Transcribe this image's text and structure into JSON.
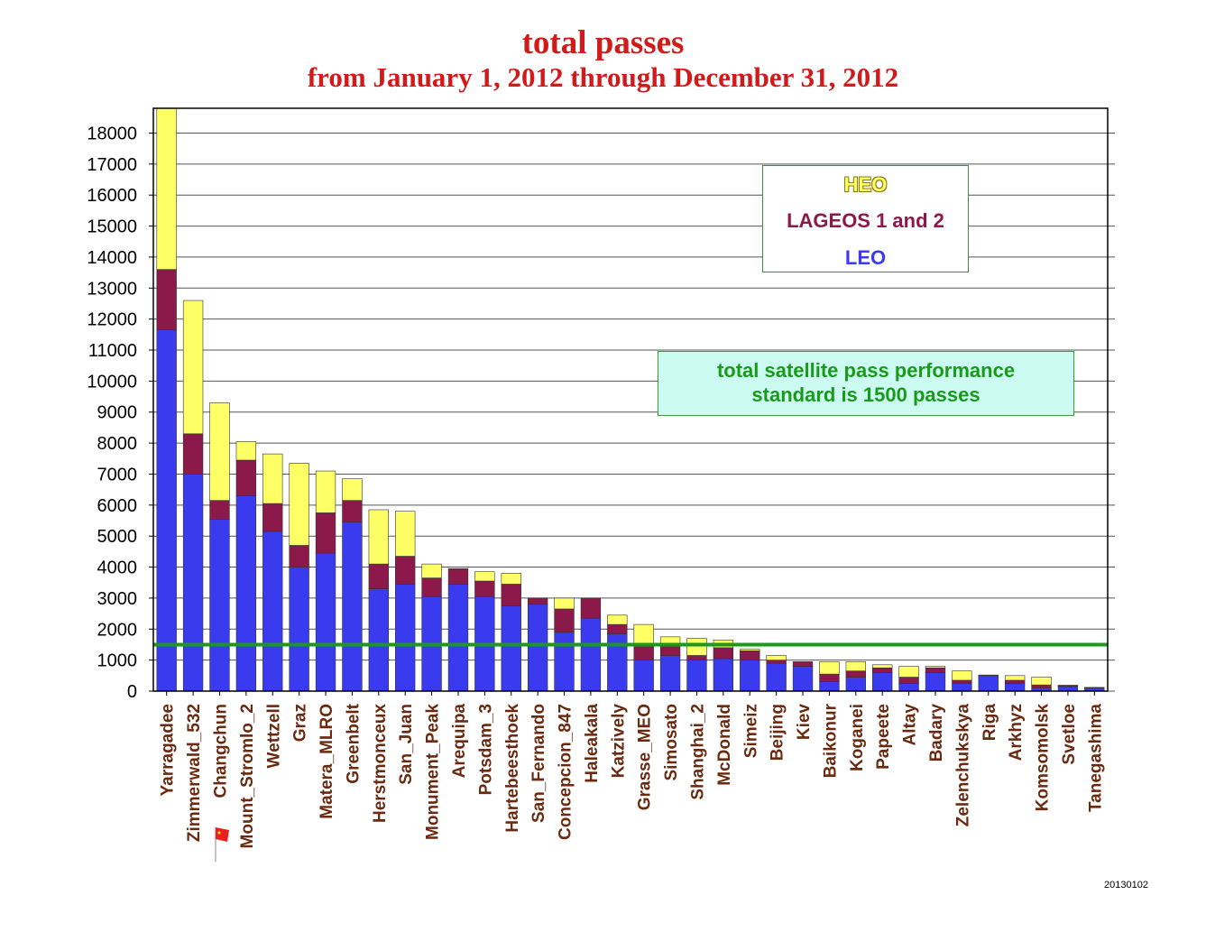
{
  "chart_data": {
    "type": "bar",
    "stacked": true,
    "title": "total passes",
    "subtitle": "from January 1, 2012 through December 31, 2012",
    "categories": [
      "Yarragadee",
      "Zimmerwald_532",
      "Changchun",
      "Mount_Stromlo_2",
      "Wettzell",
      "Graz",
      "Matera_MLRO",
      "Greenbelt",
      "Herstmonceux",
      "San_Juan",
      "Monument_Peak",
      "Arequipa",
      "Potsdam_3",
      "Hartebeesthoek",
      "San_Fernando",
      "Concepcion_847",
      "Haleakala",
      "Katzively",
      "Grasse_MEO",
      "Simosato",
      "Shanghai_2",
      "McDonald",
      "Simeiz",
      "Beijing",
      "Kiev",
      "Baikonur",
      "Koganei",
      "Papeete",
      "Altay",
      "Badary",
      "Zelenchukskya",
      "Riga",
      "Arkhyz",
      "Komsomolsk",
      "Svetloe",
      "Tanegashima"
    ],
    "series": [
      {
        "name": "LEO",
        "color": "#3a3aee",
        "values": [
          11650,
          7000,
          5550,
          6300,
          5150,
          4000,
          4450,
          5450,
          3300,
          3450,
          3050,
          3450,
          3050,
          2750,
          2800,
          1900,
          2350,
          1850,
          1000,
          1150,
          1000,
          1050,
          1000,
          900,
          800,
          300,
          450,
          600,
          250,
          600,
          250,
          500,
          250,
          100,
          150,
          100
        ]
      },
      {
        "name": "LAGEOS 1 and 2",
        "color": "#8b1a4a",
        "values": [
          1950,
          1300,
          600,
          1150,
          900,
          700,
          1300,
          700,
          800,
          900,
          600,
          500,
          500,
          700,
          200,
          750,
          650,
          300,
          450,
          350,
          150,
          350,
          300,
          100,
          150,
          250,
          200,
          150,
          200,
          150,
          100,
          20,
          100,
          100,
          30,
          20
        ]
      },
      {
        "name": "HEO",
        "color": "#ffff66",
        "values": [
          5200,
          4300,
          3150,
          600,
          1600,
          2650,
          1350,
          700,
          1750,
          1450,
          450,
          0,
          300,
          350,
          0,
          350,
          0,
          300,
          700,
          250,
          550,
          250,
          50,
          150,
          0,
          400,
          300,
          100,
          350,
          50,
          300,
          0,
          150,
          250,
          10,
          0
        ]
      }
    ],
    "ylim": [
      0,
      18800
    ],
    "yticks": [
      0,
      1000,
      2000,
      3000,
      4000,
      5000,
      6000,
      7000,
      8000,
      9000,
      10000,
      11000,
      12000,
      13000,
      14000,
      15000,
      16000,
      17000,
      18000
    ],
    "ylabel": "",
    "xlabel": "",
    "reference_line": {
      "value": 1500,
      "color": "#1a9a1a"
    },
    "grid": true,
    "legend": {
      "position": "top-right",
      "entries": [
        "HEO",
        "LAGEOS 1 and 2",
        "LEO"
      ]
    },
    "annotation": {
      "lines": [
        "total satellite pass performance",
        "standard is 1500 passes"
      ]
    },
    "datestamp": "20130102"
  }
}
